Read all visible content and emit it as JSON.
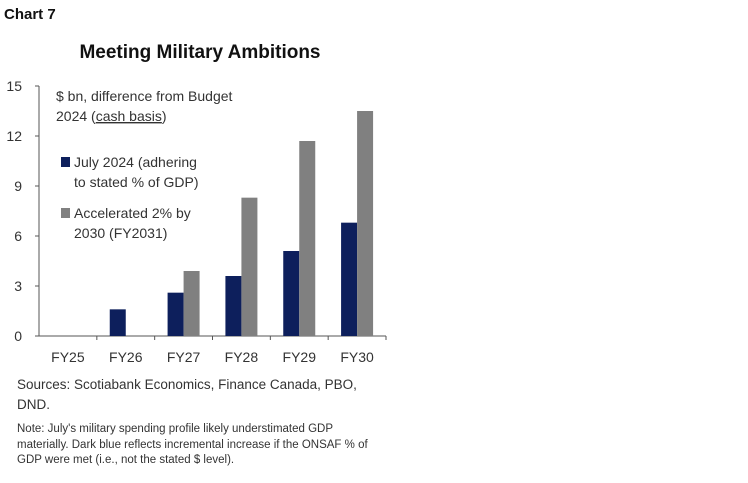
{
  "chart_label": "Chart 7",
  "chart_data": {
    "type": "bar",
    "title": "Meeting Military Ambitions",
    "unit_note_line1": "$ bn, difference from Budget",
    "unit_note_line2_prefix": "2024 (",
    "unit_note_line2_underlined": "cash basis",
    "unit_note_line2_suffix": ")",
    "categories": [
      "FY25",
      "FY26",
      "FY27",
      "FY28",
      "FY29",
      "FY30"
    ],
    "series": [
      {
        "name": "July 2024 (adhering to stated % of GDP)",
        "legend_lines": [
          "July 2024 (adhering",
          "to stated % of GDP)"
        ],
        "color": "#0d1f5c",
        "values": [
          0,
          1.6,
          2.6,
          3.6,
          5.1,
          6.8
        ]
      },
      {
        "name": "Accelerated 2% by 2030 (FY2031)",
        "legend_lines": [
          "Accelerated 2% by",
          "2030 (FY2031)"
        ],
        "color": "#808080",
        "values": [
          0,
          0,
          3.9,
          8.3,
          11.7,
          13.5
        ]
      }
    ],
    "yticks": [
      "0",
      "3",
      "6",
      "9",
      "12",
      "15"
    ],
    "ylim": [
      0,
      15
    ],
    "grid": false,
    "legend_placement": "top-left"
  },
  "sources": "Sources: Scotiabank Economics, Finance Canada, PBO, DND.",
  "note": "Note: July's military spending profile likely understimated GDP materially. Dark blue reflects incremental increase if the ONSAF % of GDP were met (i.e., not the stated $ level)."
}
